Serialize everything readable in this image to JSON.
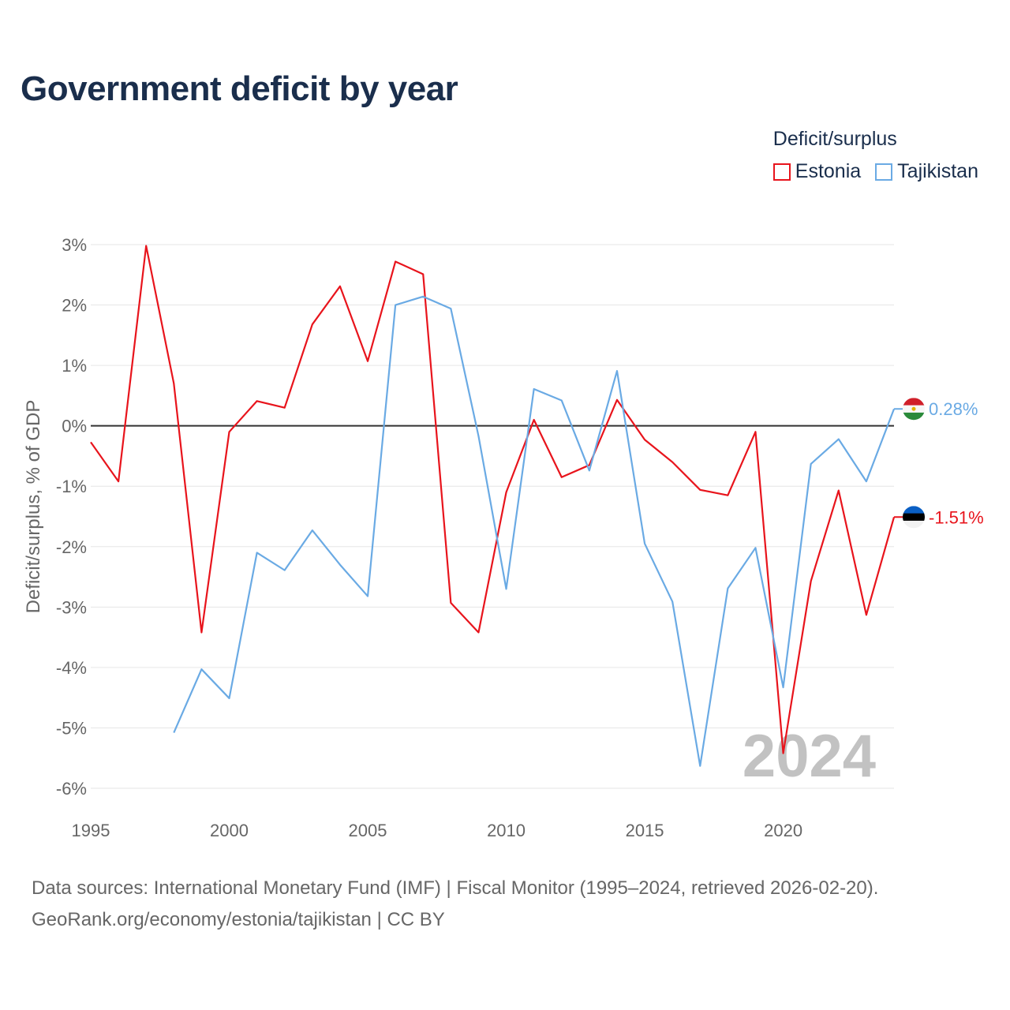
{
  "title": "Government deficit by year",
  "legend": {
    "title": "Deficit/surplus",
    "items": [
      {
        "label": "Estonia",
        "color": "#e8141c"
      },
      {
        "label": "Tajikistan",
        "color": "#6aaae4"
      }
    ]
  },
  "year_watermark": "2024",
  "footer": {
    "line1": "Data sources: International Monetary Fund (IMF) | Fiscal Monitor (1995–2024, retrieved 2026-02-20).",
    "line2": "GeoRank.org/economy/estonia/tajikistan | CC BY"
  },
  "chart_data": {
    "type": "line",
    "title": "Government deficit by year",
    "xlabel": "",
    "ylabel": "Deficit/surplus, % of GDP",
    "xlim": [
      1995,
      2024
    ],
    "ylim": [
      -6,
      3
    ],
    "x_ticks": [
      1995,
      2000,
      2005,
      2010,
      2015,
      2020
    ],
    "y_ticks": [
      3,
      2,
      1,
      0,
      -1,
      -2,
      -3,
      -4,
      -5,
      -6
    ],
    "y_tick_labels": [
      "3%",
      "2%",
      "1%",
      "0%",
      "-1%",
      "-2%",
      "-3%",
      "-4%",
      "-5%",
      "-6%"
    ],
    "grid": true,
    "zero_line": true,
    "series": [
      {
        "name": "Estonia",
        "color": "#e8141c",
        "end_label": "-1.51%",
        "points": [
          [
            1995,
            -0.27
          ],
          [
            1996,
            -0.92
          ],
          [
            1997,
            2.98
          ],
          [
            1998,
            0.7
          ],
          [
            1999,
            -3.42
          ],
          [
            2000,
            -0.1
          ],
          [
            2001,
            0.41
          ],
          [
            2002,
            0.3
          ],
          [
            2003,
            1.68
          ],
          [
            2004,
            2.31
          ],
          [
            2005,
            1.07
          ],
          [
            2006,
            2.72
          ],
          [
            2007,
            2.51
          ],
          [
            2008,
            -2.93
          ],
          [
            2009,
            -3.42
          ],
          [
            2010,
            -1.1
          ],
          [
            2011,
            0.1
          ],
          [
            2012,
            -0.85
          ],
          [
            2013,
            -0.65
          ],
          [
            2014,
            0.43
          ],
          [
            2015,
            -0.23
          ],
          [
            2016,
            -0.6
          ],
          [
            2017,
            -1.06
          ],
          [
            2018,
            -1.15
          ],
          [
            2019,
            -0.1
          ],
          [
            2020,
            -5.42
          ],
          [
            2021,
            -2.57
          ],
          [
            2022,
            -1.07
          ],
          [
            2023,
            -3.13
          ],
          [
            2024,
            -1.51
          ]
        ]
      },
      {
        "name": "Tajikistan",
        "color": "#6aaae4",
        "end_label": "0.28%",
        "points": [
          [
            1998,
            -5.08
          ],
          [
            1999,
            -4.03
          ],
          [
            2000,
            -4.51
          ],
          [
            2001,
            -2.1
          ],
          [
            2002,
            -2.39
          ],
          [
            2003,
            -1.73
          ],
          [
            2004,
            -2.3
          ],
          [
            2005,
            -2.82
          ],
          [
            2006,
            2.0
          ],
          [
            2007,
            2.14
          ],
          [
            2008,
            1.94
          ],
          [
            2009,
            -0.17
          ],
          [
            2010,
            -2.7
          ],
          [
            2011,
            0.61
          ],
          [
            2012,
            0.42
          ],
          [
            2013,
            -0.74
          ],
          [
            2014,
            0.91
          ],
          [
            2015,
            -1.95
          ],
          [
            2016,
            -2.91
          ],
          [
            2017,
            -5.63
          ],
          [
            2018,
            -2.69
          ],
          [
            2019,
            -2.02
          ],
          [
            2020,
            -4.33
          ],
          [
            2021,
            -0.63
          ],
          [
            2022,
            -0.22
          ],
          [
            2023,
            -0.92
          ],
          [
            2024,
            0.28
          ]
        ]
      }
    ]
  }
}
